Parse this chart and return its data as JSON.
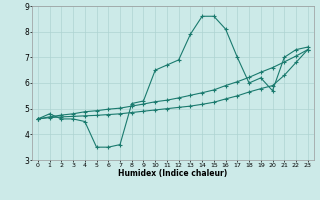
{
  "title": "",
  "xlabel": "Humidex (Indice chaleur)",
  "ylabel": "",
  "xlim": [
    -0.5,
    23.5
  ],
  "ylim": [
    3,
    9
  ],
  "yticks": [
    3,
    4,
    5,
    6,
    7,
    8,
    9
  ],
  "xticks": [
    0,
    1,
    2,
    3,
    4,
    5,
    6,
    7,
    8,
    9,
    10,
    11,
    12,
    13,
    14,
    15,
    16,
    17,
    18,
    19,
    20,
    21,
    22,
    23
  ],
  "bg_color": "#cceae8",
  "line_color": "#1a7a6e",
  "grid_color": "#aed4d2",
  "series1_x": [
    0,
    1,
    2,
    3,
    4,
    5,
    6,
    7,
    8,
    9,
    10,
    11,
    12,
    13,
    14,
    15,
    16,
    17,
    18,
    19,
    20,
    21,
    22,
    23
  ],
  "series1_y": [
    4.6,
    4.8,
    4.6,
    4.6,
    4.5,
    3.5,
    3.5,
    3.6,
    5.2,
    5.3,
    6.5,
    6.7,
    6.9,
    7.9,
    8.6,
    8.6,
    8.1,
    7.0,
    6.0,
    6.2,
    5.7,
    7.0,
    7.3,
    7.4
  ],
  "series2_x": [
    0,
    1,
    2,
    3,
    4,
    5,
    6,
    7,
    8,
    9,
    10,
    11,
    12,
    13,
    14,
    15,
    16,
    17,
    18,
    19,
    20,
    21,
    22,
    23
  ],
  "series2_y": [
    4.6,
    4.65,
    4.68,
    4.7,
    4.72,
    4.74,
    4.77,
    4.8,
    4.85,
    4.9,
    4.95,
    5.0,
    5.05,
    5.1,
    5.17,
    5.25,
    5.38,
    5.5,
    5.65,
    5.78,
    5.9,
    6.3,
    6.8,
    7.3
  ],
  "series3_x": [
    0,
    1,
    2,
    3,
    4,
    5,
    6,
    7,
    8,
    9,
    10,
    11,
    12,
    13,
    14,
    15,
    16,
    17,
    18,
    19,
    20,
    21,
    22,
    23
  ],
  "series3_y": [
    4.6,
    4.68,
    4.75,
    4.8,
    4.88,
    4.92,
    4.98,
    5.02,
    5.1,
    5.18,
    5.27,
    5.33,
    5.42,
    5.52,
    5.62,
    5.73,
    5.9,
    6.05,
    6.22,
    6.42,
    6.6,
    6.82,
    7.05,
    7.3
  ]
}
